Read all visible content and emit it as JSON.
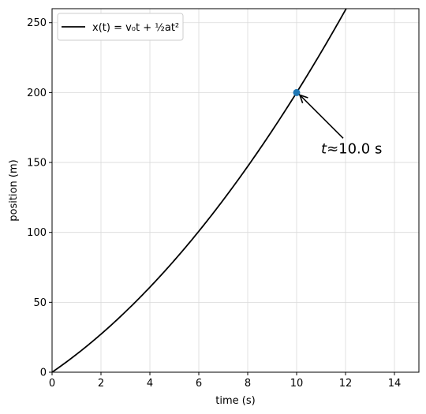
{
  "chart_data": {
    "type": "line",
    "xlabel": "time (s)",
    "ylabel": "position (m)",
    "xlim": [
      0,
      15
    ],
    "ylim": [
      0,
      260
    ],
    "grid": true,
    "x_ticks": [
      0,
      2,
      4,
      6,
      8,
      10,
      12,
      14
    ],
    "y_ticks": [
      0,
      50,
      100,
      150,
      200,
      250
    ],
    "legend_position": "top-left",
    "series": [
      {
        "name": "x(t) = v₀t + ½at²",
        "color": "#000000",
        "v0": 12,
        "a": 1.6,
        "x": [
          0,
          1,
          2,
          3,
          4,
          5,
          6,
          7,
          8,
          9,
          10,
          11,
          12
        ],
        "values": [
          0,
          12.8,
          27.2,
          43.2,
          60.8,
          80,
          100.8,
          123.2,
          147.2,
          172.8,
          200,
          228.8,
          259.2
        ]
      }
    ],
    "marker": {
      "x": 10,
      "y": 200,
      "color": "#1f77b4"
    },
    "annotation": {
      "text_italic": "t",
      "text_rest": "≈10.0 s",
      "target": [
        10,
        200
      ],
      "text_at": [
        11,
        160
      ]
    }
  }
}
